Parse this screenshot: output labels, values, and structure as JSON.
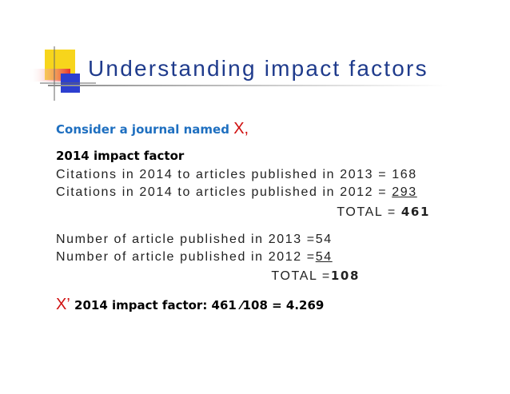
{
  "title": "Understanding impact factors",
  "intro": {
    "text": "Consider a journal named",
    "journal": "X,"
  },
  "impact_2014": {
    "heading": "2014 impact factor",
    "lines": [
      {
        "label": "Citations in 2014 to articles published in 2013 =",
        "value": "168"
      },
      {
        "label": "Citations in 2014 to articles published in 2012 =",
        "value": "293"
      }
    ],
    "total": {
      "label": "TOTAL =",
      "value": "461"
    }
  },
  "articles": {
    "lines": [
      {
        "label": "Number of article published in 2013 =",
        "value": "54"
      },
      {
        "label": "Number of article published in 2012 =",
        "value": "54"
      }
    ],
    "total": {
      "label": "TOTAL =",
      "value": "108"
    }
  },
  "result": {
    "journal": "X’",
    "text": "2014 impact factor: 461 ⁄108 = 4.269"
  }
}
